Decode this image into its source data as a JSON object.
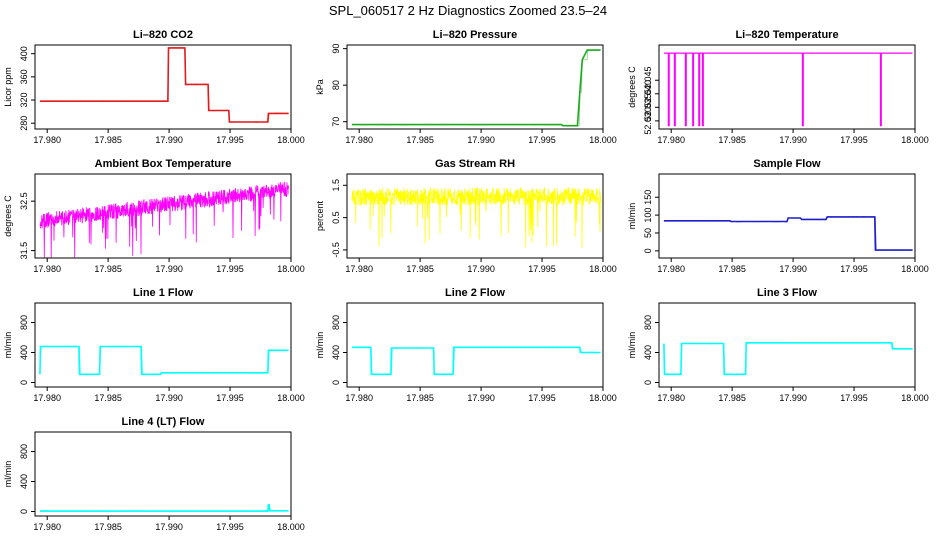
{
  "figure_title": "SPL_060517  2 Hz Diagnostics Zoomed 23.5–24",
  "colors": {
    "red": "#e41a1c",
    "green": "#1faa1f",
    "magenta": "#ff00ff",
    "yellow": "#ffff00",
    "blue": "#1f1fcc",
    "cyan": "#00ffff"
  },
  "chart_data": [
    {
      "id": "co2",
      "type": "line",
      "title": "Li–820 CO2",
      "ylabel": "Licor ppm",
      "color": "red",
      "xlim": [
        17.979,
        18.0
      ],
      "ylim": [
        270,
        415
      ],
      "xticks": [
        "17.980",
        "17.985",
        "17.990",
        "17.995",
        "18.000"
      ],
      "yticks": [
        "280",
        "320",
        "360",
        "400"
      ],
      "x": [
        17.9794,
        17.9899,
        17.98995,
        17.9913,
        17.99135,
        17.9932,
        17.99325,
        17.9949,
        17.99495,
        17.9981,
        17.99815,
        17.9998
      ],
      "y": [
        318,
        318,
        410,
        410,
        347,
        347,
        302,
        302,
        282,
        282,
        297,
        297
      ]
    },
    {
      "id": "pressure",
      "type": "line",
      "title": "Li–820 Pressure",
      "ylabel": "kPa",
      "color": "green",
      "xlim": [
        17.979,
        18.0
      ],
      "ylim": [
        68,
        91
      ],
      "xticks": [
        "17.980",
        "17.985",
        "17.990",
        "17.995",
        "18.000"
      ],
      "yticks": [
        "70",
        "80",
        "90"
      ],
      "x": [
        17.9794,
        17.9966,
        17.9967,
        17.9979,
        17.9981,
        17.9983,
        17.9987,
        17.9998
      ],
      "y": [
        69.2,
        69.2,
        68.9,
        68.9,
        78,
        87,
        89.6,
        89.6
      ]
    },
    {
      "id": "temperature",
      "type": "line",
      "title": "Li–820 Temperature",
      "ylabel": "degrees C",
      "color": "magenta",
      "xlim": [
        17.979,
        18.0
      ],
      "ylim": [
        52.027,
        52.058
      ],
      "xticks": [
        "17.980",
        "17.985",
        "17.990",
        "17.995",
        "18.000"
      ],
      "yticks": [
        "52.030",
        "52.035",
        "52.040",
        "52.045"
      ],
      "baseline": 52.055,
      "dip_value": 52.028,
      "dips": [
        17.9798,
        17.9803,
        17.9812,
        17.9818,
        17.9823,
        17.9826,
        17.9908,
        17.9972
      ]
    },
    {
      "id": "ambient",
      "type": "line",
      "title": "Ambient Box Temperature",
      "ylabel": "degrees C",
      "color": "magenta",
      "xlim": [
        17.979,
        18.0
      ],
      "ylim": [
        31.35,
        33.05
      ],
      "xticks": [
        "17.980",
        "17.985",
        "17.990",
        "17.995",
        "18.000"
      ],
      "yticks": [
        "31.5",
        "32.5"
      ],
      "trend_start": 32.1,
      "trend_end": 32.75
    },
    {
      "id": "rh",
      "type": "line",
      "title": "Gas Stream RH",
      "ylabel": "percent",
      "color": "yellow",
      "xlim": [
        17.979,
        18.0
      ],
      "ylim": [
        -0.75,
        1.85
      ],
      "xticks": [
        "17.980",
        "17.985",
        "17.990",
        "17.995",
        "18.000"
      ],
      "yticks": [
        "-0.5",
        "0.5",
        "1.5"
      ],
      "mean": 1.15
    },
    {
      "id": "sample",
      "type": "line",
      "title": "Sample Flow",
      "ylabel": "ml/min",
      "color": "blue",
      "xlim": [
        17.979,
        18.0
      ],
      "ylim": [
        -20,
        215
      ],
      "xticks": [
        "17.980",
        "17.985",
        "17.990",
        "17.995",
        "18.000"
      ],
      "yticks": [
        "0",
        "50",
        "100",
        "150"
      ],
      "x": [
        17.9794,
        17.9848,
        17.9849,
        17.9895,
        17.9896,
        17.9906,
        17.9907,
        17.9927,
        17.9928,
        17.9967,
        17.99675,
        17.9998
      ],
      "y": [
        84,
        84,
        82,
        82,
        92,
        92,
        88,
        88,
        95,
        95,
        2,
        2
      ]
    },
    {
      "id": "line1",
      "type": "line",
      "title": "Line 1 Flow",
      "ylabel": "ml/min",
      "color": "cyan",
      "xlim": [
        17.979,
        18.0
      ],
      "ylim": [
        -60,
        1060
      ],
      "xticks": [
        "17.980",
        "17.985",
        "17.990",
        "17.995",
        "18.000"
      ],
      "yticks": [
        "0",
        "400",
        "800"
      ],
      "x": [
        17.9794,
        17.97945,
        17.9826,
        17.98265,
        17.9843,
        17.98435,
        17.9877,
        17.98775,
        17.9893,
        17.98935,
        17.9981,
        17.99815,
        17.9998
      ],
      "y": [
        110,
        480,
        480,
        110,
        110,
        480,
        480,
        110,
        110,
        130,
        130,
        430,
        430
      ]
    },
    {
      "id": "line2",
      "type": "line",
      "title": "Line 2 Flow",
      "ylabel": "ml/min",
      "color": "cyan",
      "xlim": [
        17.979,
        18.0
      ],
      "ylim": [
        -60,
        1060
      ],
      "xticks": [
        "17.980",
        "17.985",
        "17.990",
        "17.995",
        "18.000"
      ],
      "yticks": [
        "0",
        "400",
        "800"
      ],
      "x": [
        17.9794,
        17.98095,
        17.981,
        17.9826,
        17.98265,
        17.9861,
        17.98615,
        17.9877,
        17.98775,
        17.9981,
        17.99815,
        17.9998
      ],
      "y": [
        470,
        470,
        110,
        110,
        460,
        460,
        110,
        110,
        470,
        470,
        400,
        400
      ]
    },
    {
      "id": "line3",
      "type": "line",
      "title": "Line 3 Flow",
      "ylabel": "ml/min",
      "color": "cyan",
      "xlim": [
        17.979,
        18.0
      ],
      "ylim": [
        -60,
        1060
      ],
      "xticks": [
        "17.980",
        "17.985",
        "17.990",
        "17.995",
        "18.000"
      ],
      "yticks": [
        "0",
        "400",
        "800"
      ],
      "x": [
        17.9794,
        17.97945,
        17.9796,
        17.9808,
        17.98085,
        17.9843,
        17.98435,
        17.9861,
        17.98615,
        17.9981,
        17.99815,
        17.9998
      ],
      "y": [
        520,
        110,
        110,
        110,
        520,
        520,
        110,
        110,
        530,
        530,
        450,
        450
      ]
    },
    {
      "id": "line4",
      "type": "line",
      "title": "Line 4 (LT) Flow",
      "ylabel": "ml/min",
      "color": "cyan",
      "xlim": [
        17.979,
        18.0
      ],
      "ylim": [
        -60,
        1060
      ],
      "xticks": [
        "17.980",
        "17.985",
        "17.990",
        "17.995",
        "18.000"
      ],
      "yticks": [
        "0",
        "400",
        "800"
      ],
      "x": [
        17.9794,
        17.9981,
        17.99815,
        17.9982,
        17.99825,
        17.9998
      ],
      "y": [
        5,
        5,
        90,
        90,
        10,
        10
      ]
    }
  ]
}
